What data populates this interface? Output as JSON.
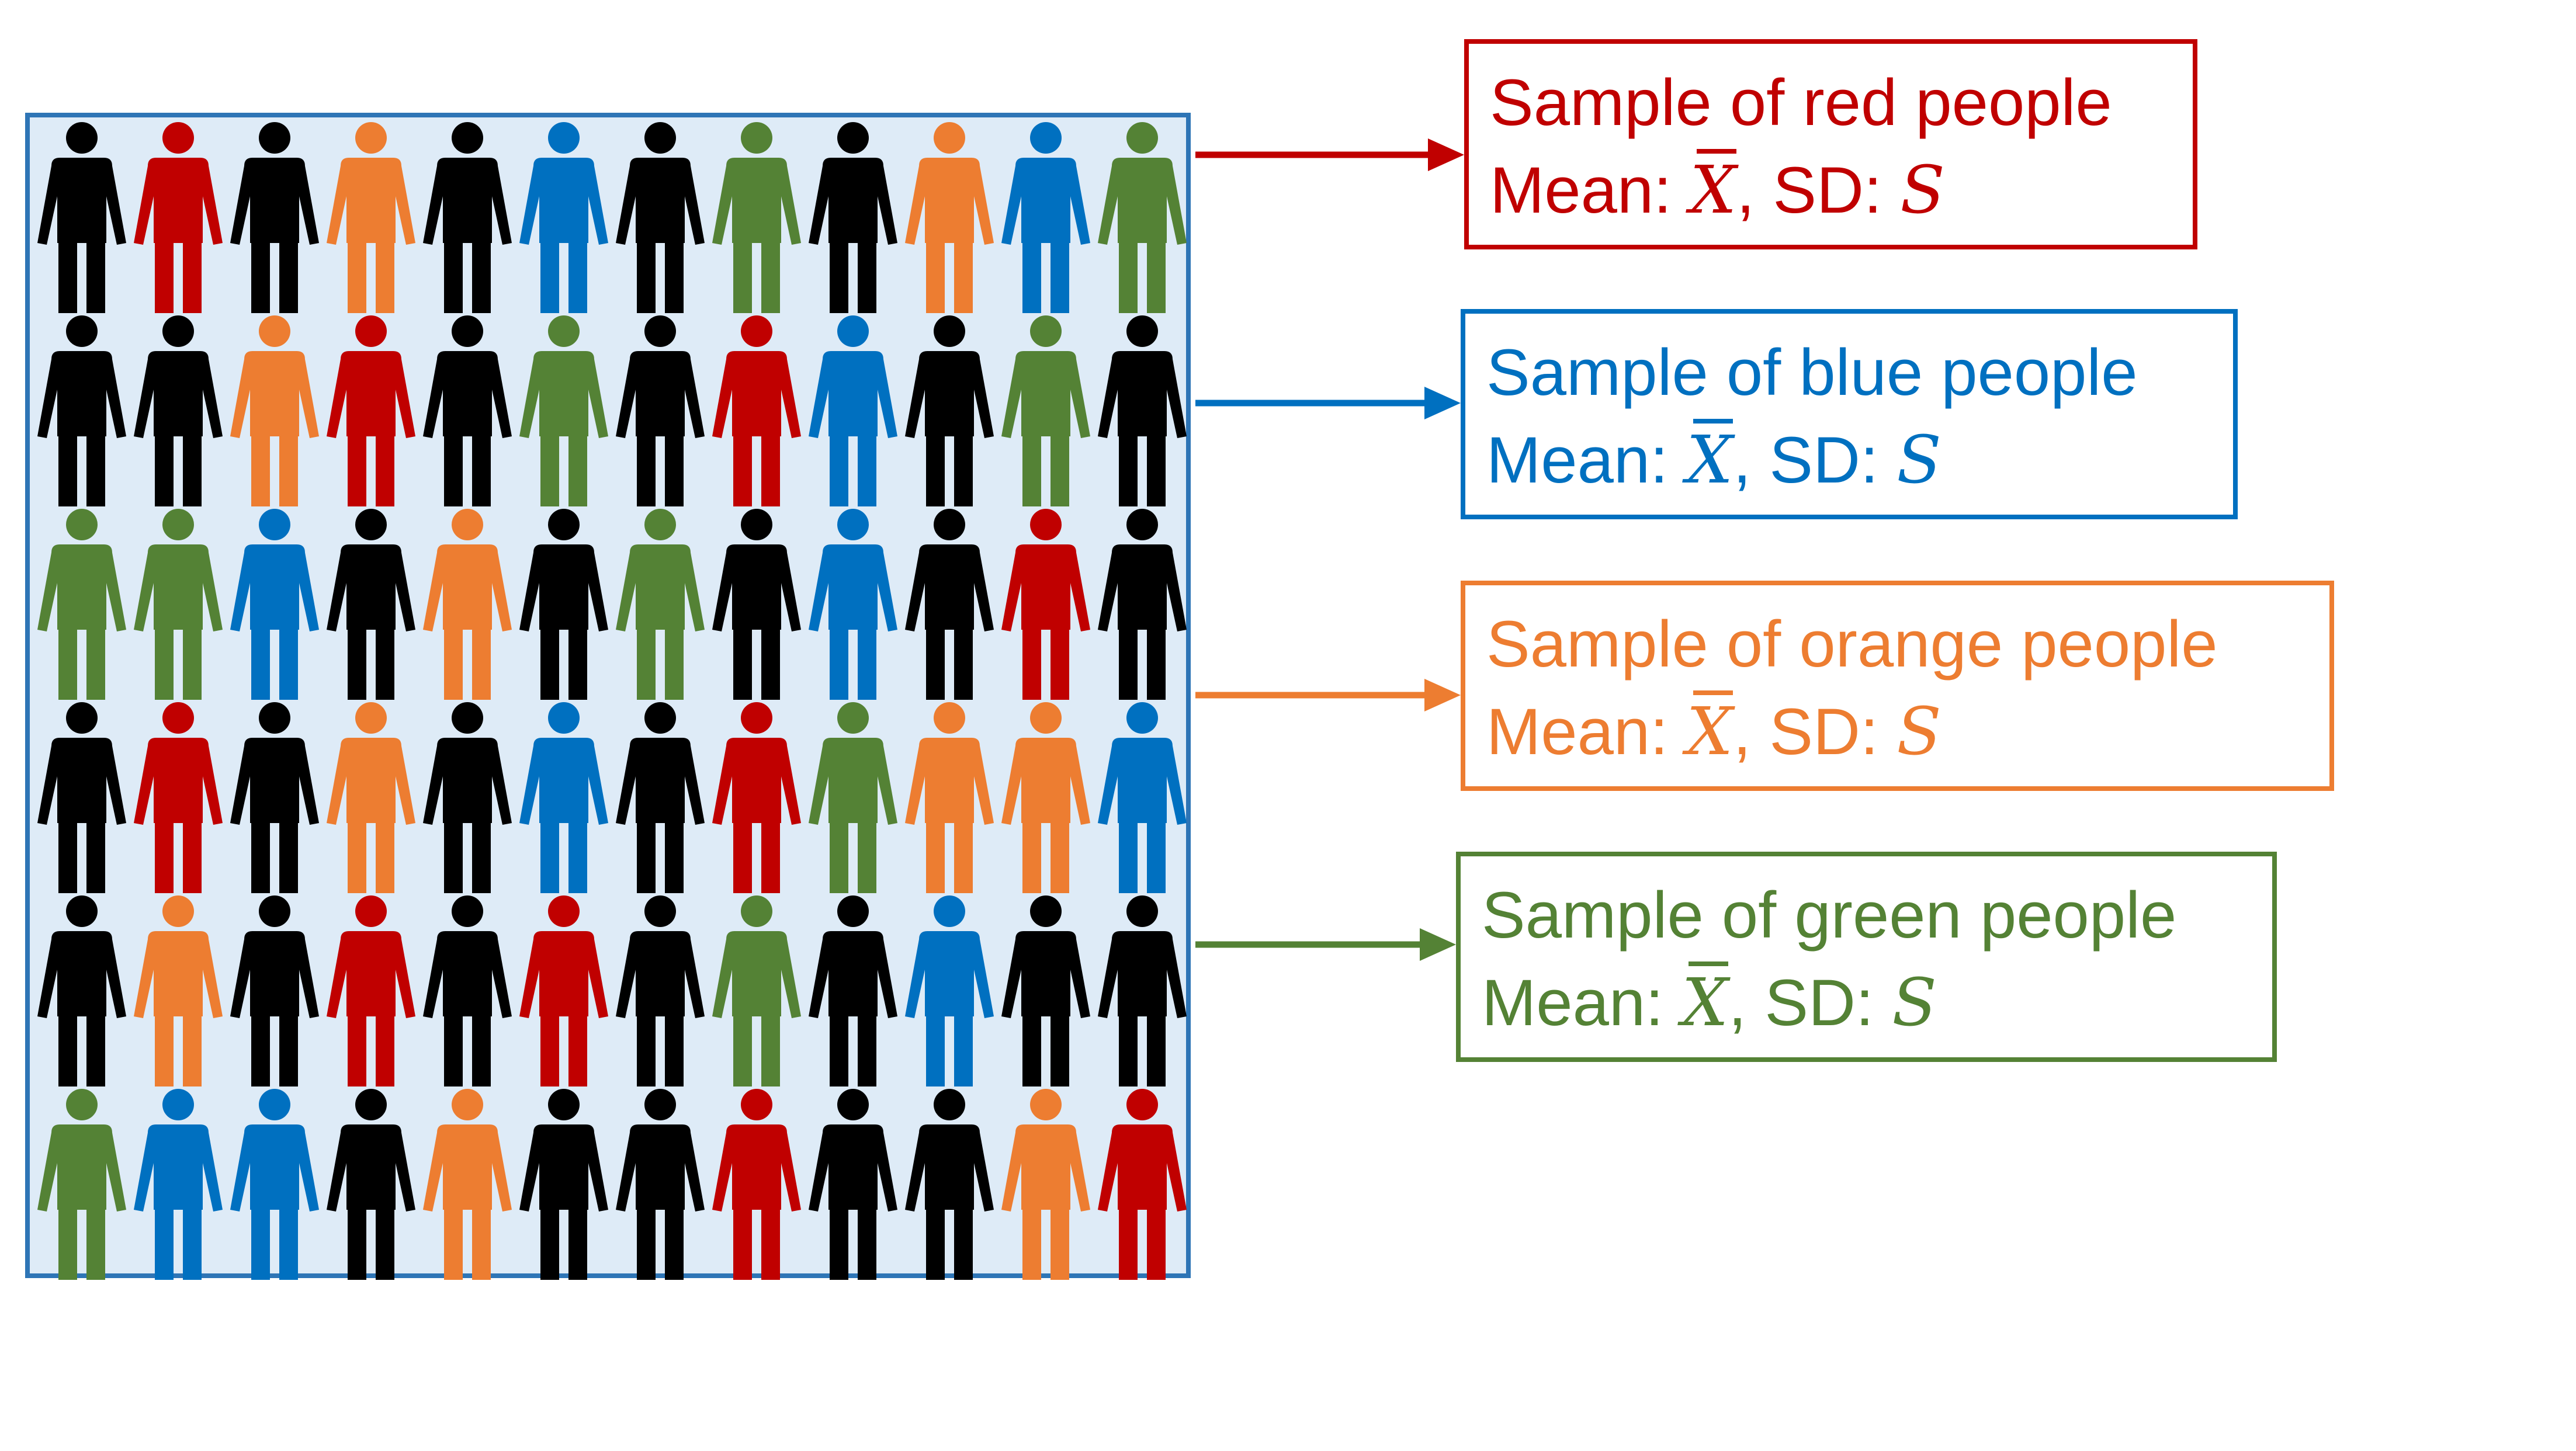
{
  "colors": {
    "black": "#000000",
    "red": "#C00000",
    "orange": "#ED7D31",
    "blue": "#0070C0",
    "green": "#548235",
    "population_border": "#2E75B6",
    "population_fill": "#DEEBF7"
  },
  "population": {
    "icon": "person-icon",
    "rows": [
      [
        "black",
        "red",
        "black",
        "orange",
        "black",
        "blue",
        "black",
        "green",
        "black",
        "orange",
        "blue",
        "green"
      ],
      [
        "black",
        "black",
        "orange",
        "red",
        "black",
        "green",
        "black",
        "red",
        "blue",
        "black",
        "green",
        "black"
      ],
      [
        "green",
        "green",
        "blue",
        "black",
        "orange",
        "black",
        "green",
        "black",
        "blue",
        "black",
        "red",
        "black"
      ],
      [
        "black",
        "red",
        "black",
        "orange",
        "black",
        "blue",
        "black",
        "red",
        "green",
        "orange",
        "orange",
        "blue"
      ],
      [
        "black",
        "orange",
        "black",
        "red",
        "black",
        "red",
        "black",
        "green",
        "black",
        "blue",
        "black",
        "black"
      ],
      [
        "green",
        "blue",
        "blue",
        "black",
        "orange",
        "black",
        "black",
        "red",
        "black",
        "black",
        "orange",
        "red"
      ]
    ]
  },
  "samples": [
    {
      "id": "red",
      "color": "#C00000",
      "title": "Sample of red people",
      "mean_label": "Mean: ",
      "mean_symbol": "X",
      "sd_label": ", SD: ",
      "sd_symbol": "S"
    },
    {
      "id": "blue",
      "color": "#0070C0",
      "title": "Sample of blue people",
      "mean_label": "Mean: ",
      "mean_symbol": "X",
      "sd_label": ", SD: ",
      "sd_symbol": "S"
    },
    {
      "id": "orange",
      "color": "#ED7D31",
      "title": "Sample of orange people",
      "mean_label": "Mean: ",
      "mean_symbol": "X",
      "sd_label": ", SD: ",
      "sd_symbol": "S"
    },
    {
      "id": "green",
      "color": "#548235",
      "title": "Sample of green people",
      "mean_label": "Mean: ",
      "mean_symbol": "X",
      "sd_label": ", SD: ",
      "sd_symbol": "S"
    }
  ]
}
